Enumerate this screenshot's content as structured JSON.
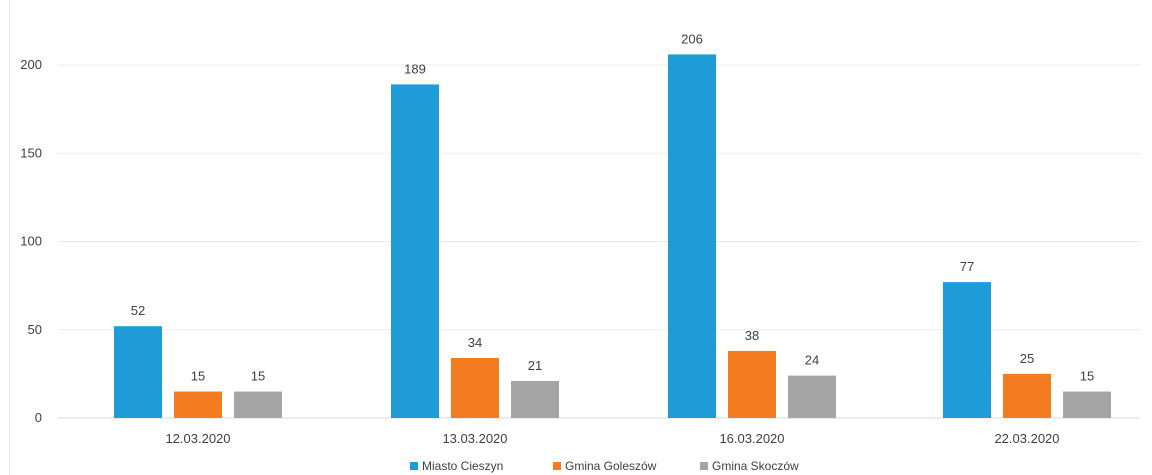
{
  "chart_data": {
    "type": "bar",
    "categories": [
      "12.03.2020",
      "13.03.2020",
      "16.03.2020",
      "22.03.2020"
    ],
    "series": [
      {
        "name": "Miasto Cieszyn",
        "color": "#1f9bd7",
        "values": [
          52,
          189,
          206,
          77
        ]
      },
      {
        "name": "Gmina Goleszów",
        "color": "#f47b20",
        "values": [
          15,
          34,
          38,
          25
        ]
      },
      {
        "name": "Gmina Skoczów",
        "color": "#a5a5a5",
        "values": [
          15,
          21,
          24,
          15
        ]
      }
    ],
    "y_ticks": [
      "0",
      "50",
      "100",
      "150",
      "200"
    ],
    "ylim": [
      0,
      210
    ],
    "grid": true,
    "legend_position": "bottom",
    "data_labels": true
  }
}
